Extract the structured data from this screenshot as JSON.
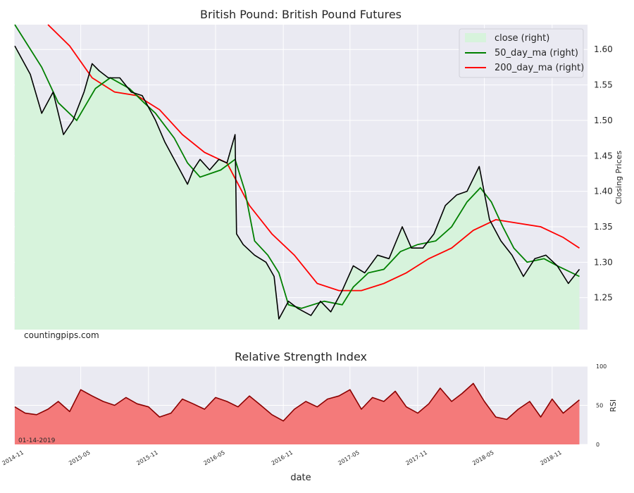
{
  "chart_data": [
    {
      "type": "area",
      "title": "British Pound: British Pound Futures",
      "ylabel": "Closing Prices",
      "watermark": "countingpips.com",
      "ylim": [
        1.205,
        1.635
      ],
      "yticks": [
        "1.25",
        "1.30",
        "1.35",
        "1.40",
        "1.45",
        "1.50",
        "1.55",
        "1.60"
      ],
      "xlim": [
        "2014-11-01",
        "2019-02-05"
      ],
      "grid": true,
      "legend_position": "top-right",
      "legend": [
        {
          "label": "close (right)",
          "color": "#d7f3dc",
          "kind": "patch"
        },
        {
          "label": "50_day_ma (right)",
          "color": "#008000",
          "kind": "line"
        },
        {
          "label": "200_day_ma (right)",
          "color": "#ff0000",
          "kind": "line"
        }
      ],
      "series": [
        {
          "name": "close (right)",
          "color": "#000000",
          "fill": "#d7f3dc",
          "x": [
            "2014-11-03",
            "2014-12-15",
            "2015-01-15",
            "2015-02-15",
            "2015-03-15",
            "2015-04-10",
            "2015-05-10",
            "2015-06-01",
            "2015-06-20",
            "2015-07-15",
            "2015-08-15",
            "2015-09-15",
            "2015-10-15",
            "2015-11-20",
            "2015-12-15",
            "2016-01-15",
            "2016-02-15",
            "2016-03-01",
            "2016-03-20",
            "2016-04-15",
            "2016-05-10",
            "2016-06-01",
            "2016-06-23",
            "2016-06-27",
            "2016-07-15",
            "2016-08-15",
            "2016-09-15",
            "2016-10-07",
            "2016-10-20",
            "2016-11-15",
            "2016-12-10",
            "2017-01-15",
            "2017-02-10",
            "2017-03-10",
            "2017-04-10",
            "2017-05-10",
            "2017-06-10",
            "2017-07-15",
            "2017-08-15",
            "2017-09-20",
            "2017-10-15",
            "2017-11-15",
            "2017-12-15",
            "2018-01-15",
            "2018-02-15",
            "2018-03-15",
            "2018-04-17",
            "2018-05-15",
            "2018-06-15",
            "2018-07-15",
            "2018-08-15",
            "2018-09-15",
            "2018-10-15",
            "2018-11-15",
            "2018-12-15",
            "2019-01-14"
          ],
          "values": [
            1.605,
            1.565,
            1.51,
            1.54,
            1.48,
            1.5,
            1.54,
            1.58,
            1.57,
            1.56,
            1.56,
            1.54,
            1.535,
            1.5,
            1.47,
            1.44,
            1.41,
            1.43,
            1.445,
            1.43,
            1.445,
            1.44,
            1.48,
            1.34,
            1.325,
            1.31,
            1.3,
            1.28,
            1.22,
            1.245,
            1.235,
            1.225,
            1.245,
            1.23,
            1.26,
            1.295,
            1.285,
            1.31,
            1.305,
            1.35,
            1.32,
            1.32,
            1.34,
            1.38,
            1.395,
            1.4,
            1.435,
            1.36,
            1.33,
            1.31,
            1.28,
            1.305,
            1.31,
            1.295,
            1.27,
            1.29
          ]
        },
        {
          "name": "50_day_ma (right)",
          "color": "#008000",
          "x": [
            "2014-11-03",
            "2015-01-15",
            "2015-03-01",
            "2015-04-20",
            "2015-06-10",
            "2015-07-20",
            "2015-09-10",
            "2015-10-20",
            "2015-11-20",
            "2016-01-10",
            "2016-02-15",
            "2016-03-20",
            "2016-05-15",
            "2016-06-23",
            "2016-07-20",
            "2016-08-15",
            "2016-09-20",
            "2016-10-20",
            "2016-11-15",
            "2016-12-20",
            "2017-02-20",
            "2017-04-10",
            "2017-05-10",
            "2017-06-20",
            "2017-08-01",
            "2017-09-15",
            "2017-11-01",
            "2017-12-20",
            "2018-02-01",
            "2018-03-15",
            "2018-04-20",
            "2018-05-20",
            "2018-06-20",
            "2018-07-20",
            "2018-08-25",
            "2018-10-10",
            "2018-11-15",
            "2019-01-14"
          ],
          "values": [
            1.635,
            1.575,
            1.525,
            1.5,
            1.545,
            1.56,
            1.545,
            1.525,
            1.51,
            1.475,
            1.44,
            1.42,
            1.43,
            1.445,
            1.4,
            1.33,
            1.31,
            1.285,
            1.24,
            1.235,
            1.245,
            1.24,
            1.265,
            1.285,
            1.29,
            1.315,
            1.325,
            1.33,
            1.35,
            1.385,
            1.405,
            1.385,
            1.35,
            1.32,
            1.3,
            1.305,
            1.295,
            1.28
          ]
        },
        {
          "name": "200_day_ma (right)",
          "color": "#ff0000",
          "x": [
            "2015-02-01",
            "2015-04-01",
            "2015-06-01",
            "2015-08-01",
            "2015-10-01",
            "2015-12-01",
            "2016-02-01",
            "2016-04-01",
            "2016-06-01",
            "2016-08-01",
            "2016-10-01",
            "2016-12-01",
            "2017-02-01",
            "2017-04-01",
            "2017-06-01",
            "2017-08-01",
            "2017-10-01",
            "2017-12-01",
            "2018-02-01",
            "2018-04-01",
            "2018-06-01",
            "2018-08-01",
            "2018-10-01",
            "2018-12-01",
            "2019-01-14"
          ],
          "values": [
            1.635,
            1.605,
            1.56,
            1.54,
            1.535,
            1.515,
            1.48,
            1.455,
            1.44,
            1.38,
            1.34,
            1.31,
            1.27,
            1.26,
            1.26,
            1.27,
            1.285,
            1.305,
            1.32,
            1.345,
            1.36,
            1.355,
            1.35,
            1.335,
            1.32
          ]
        }
      ]
    },
    {
      "type": "area",
      "title": "Relative Strength Index",
      "xlabel": "date",
      "ylabel": "RSI",
      "ylim": [
        0,
        100
      ],
      "yticks": [
        "0",
        "50",
        "100"
      ],
      "last_date_label": "01-14-2019",
      "xticks": [
        "2014-11",
        "2015-05",
        "2015-11",
        "2016-05",
        "2016-11",
        "2017-05",
        "2017-11",
        "2018-05",
        "2018-11"
      ],
      "grid": true,
      "series": [
        {
          "name": "RSI",
          "color": "#8b0000",
          "fill": "#f47a7a",
          "x": [
            "2014-11-03",
            "2014-12-01",
            "2015-01-01",
            "2015-02-01",
            "2015-03-01",
            "2015-04-01",
            "2015-05-01",
            "2015-06-01",
            "2015-07-01",
            "2015-08-01",
            "2015-09-01",
            "2015-10-01",
            "2015-11-01",
            "2015-12-01",
            "2016-01-01",
            "2016-02-01",
            "2016-03-01",
            "2016-04-01",
            "2016-05-01",
            "2016-06-01",
            "2016-07-01",
            "2016-08-01",
            "2016-09-01",
            "2016-10-01",
            "2016-11-01",
            "2016-12-01",
            "2017-01-01",
            "2017-02-01",
            "2017-03-01",
            "2017-04-01",
            "2017-05-01",
            "2017-06-01",
            "2017-07-01",
            "2017-08-01",
            "2017-09-01",
            "2017-10-01",
            "2017-11-01",
            "2017-12-01",
            "2018-01-01",
            "2018-02-01",
            "2018-03-01",
            "2018-04-01",
            "2018-05-01",
            "2018-06-01",
            "2018-07-01",
            "2018-08-01",
            "2018-09-01",
            "2018-10-01",
            "2018-11-01",
            "2018-12-01",
            "2019-01-14"
          ],
          "values": [
            48,
            40,
            38,
            45,
            55,
            42,
            70,
            62,
            55,
            50,
            60,
            52,
            48,
            35,
            40,
            58,
            52,
            45,
            60,
            55,
            48,
            62,
            50,
            38,
            30,
            45,
            55,
            48,
            58,
            62,
            70,
            45,
            60,
            55,
            68,
            48,
            40,
            52,
            72,
            55,
            65,
            78,
            55,
            35,
            32,
            45,
            55,
            35,
            58,
            40,
            57
          ]
        }
      ]
    }
  ]
}
